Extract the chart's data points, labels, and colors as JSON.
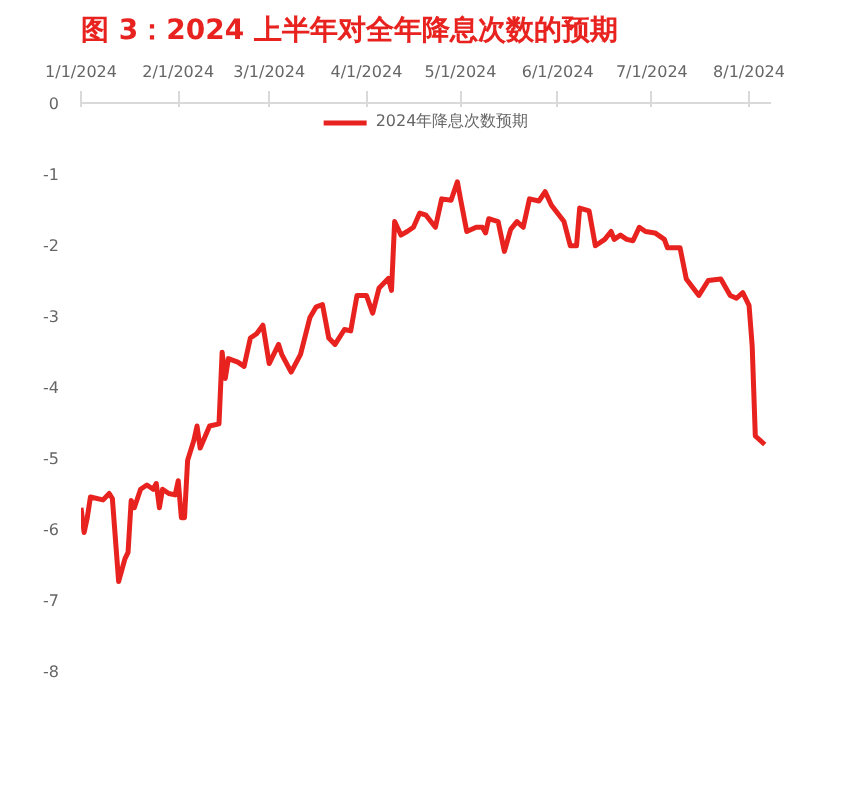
{
  "chart_data": {
    "type": "line",
    "title": "图 3：2024 上半年对全年降息次数的预期",
    "x": [
      "2024-01-01",
      "2024-01-02",
      "2024-01-03",
      "2024-01-04",
      "2024-01-08",
      "2024-01-10",
      "2024-01-11",
      "2024-01-13",
      "2024-01-15",
      "2024-01-16",
      "2024-01-17",
      "2024-01-18",
      "2024-01-20",
      "2024-01-22",
      "2024-01-24",
      "2024-01-25",
      "2024-01-26",
      "2024-01-27",
      "2024-01-29",
      "2024-01-31",
      "2024-02-01",
      "2024-02-02",
      "2024-02-03",
      "2024-02-04",
      "2024-02-06",
      "2024-02-07",
      "2024-02-08",
      "2024-02-11",
      "2024-02-14",
      "2024-02-15",
      "2024-02-16",
      "2024-02-17",
      "2024-02-20",
      "2024-02-22",
      "2024-02-24",
      "2024-02-26",
      "2024-02-28",
      "2024-03-01",
      "2024-03-04",
      "2024-03-05",
      "2024-03-08",
      "2024-03-11",
      "2024-03-14",
      "2024-03-16",
      "2024-03-18",
      "2024-03-20",
      "2024-03-22",
      "2024-03-25",
      "2024-03-27",
      "2024-03-29",
      "2024-04-01",
      "2024-04-03",
      "2024-04-05",
      "2024-04-08",
      "2024-04-09",
      "2024-04-10",
      "2024-04-12",
      "2024-04-14",
      "2024-04-16",
      "2024-04-18",
      "2024-04-20",
      "2024-04-23",
      "2024-04-25",
      "2024-04-28",
      "2024-04-30",
      "2024-05-01",
      "2024-05-03",
      "2024-05-06",
      "2024-05-08",
      "2024-05-09",
      "2024-05-10",
      "2024-05-13",
      "2024-05-15",
      "2024-05-17",
      "2024-05-19",
      "2024-05-21",
      "2024-05-23",
      "2024-05-26",
      "2024-05-28",
      "2024-05-30",
      "2024-06-03",
      "2024-06-05",
      "2024-06-07",
      "2024-06-08",
      "2024-06-11",
      "2024-06-13",
      "2024-06-16",
      "2024-06-18",
      "2024-06-19",
      "2024-06-21",
      "2024-06-23",
      "2024-06-25",
      "2024-06-27",
      "2024-06-29",
      "2024-07-02",
      "2024-07-05",
      "2024-07-06",
      "2024-07-10",
      "2024-07-12",
      "2024-07-16",
      "2024-07-19",
      "2024-07-23",
      "2024-07-26",
      "2024-07-28",
      "2024-07-30",
      "2024-08-01",
      "2024-08-02",
      "2024-08-03",
      "2024-08-06"
    ],
    "series": [
      {
        "name": "2024年降息次数预期",
        "color": "#e8231f",
        "values": [
          -5.7,
          -6.05,
          -5.84,
          -5.55,
          -5.59,
          -5.5,
          -5.57,
          -6.74,
          -6.42,
          -6.33,
          -5.6,
          -5.7,
          -5.44,
          -5.38,
          -5.44,
          -5.36,
          -5.7,
          -5.44,
          -5.5,
          -5.52,
          -5.32,
          -5.84,
          -5.84,
          -5.03,
          -4.75,
          -4.55,
          -4.86,
          -4.55,
          -4.52,
          -3.51,
          -3.88,
          -3.6,
          -3.65,
          -3.71,
          -3.31,
          -3.25,
          -3.13,
          -3.67,
          -3.4,
          -3.54,
          -3.79,
          -3.54,
          -3.02,
          -2.87,
          -2.84,
          -3.31,
          -3.4,
          -3.19,
          -3.21,
          -2.71,
          -2.71,
          -2.96,
          -2.61,
          -2.47,
          -2.64,
          -1.67,
          -1.86,
          -1.81,
          -1.75,
          -1.55,
          -1.58,
          -1.75,
          -1.35,
          -1.37,
          -1.11,
          -1.35,
          -1.81,
          -1.75,
          -1.75,
          -1.83,
          -1.63,
          -1.67,
          -2.09,
          -1.78,
          -1.67,
          -1.75,
          -1.35,
          -1.38,
          -1.25,
          -1.44,
          -1.67,
          -2.01,
          -2.01,
          -1.48,
          -1.52,
          -2.01,
          -1.92,
          -1.81,
          -1.92,
          -1.86,
          -1.92,
          -1.94,
          -1.75,
          -1.81,
          -1.83,
          -1.92,
          -2.04,
          -2.04,
          -2.48,
          -2.71,
          -2.5,
          -2.48,
          -2.71,
          -2.75,
          -2.67,
          -2.85,
          -3.42,
          -4.69,
          -4.81
        ]
      }
    ],
    "xlim": [
      "2024-01-01",
      "2024-08-08"
    ],
    "xticks": [
      {
        "value": "2024-01-01",
        "label": "1/1/2024"
      },
      {
        "value": "2024-02-01",
        "label": "2/1/2024"
      },
      {
        "value": "2024-03-01",
        "label": "3/1/2024"
      },
      {
        "value": "2024-04-01",
        "label": "4/1/2024"
      },
      {
        "value": "2024-05-01",
        "label": "5/1/2024"
      },
      {
        "value": "2024-06-01",
        "label": "6/1/2024"
      },
      {
        "value": "2024-07-01",
        "label": "7/1/2024"
      },
      {
        "value": "2024-08-01",
        "label": "8/1/2024"
      }
    ],
    "ylim": [
      -8,
      0
    ],
    "yticks": [
      0,
      -1,
      -2,
      -3,
      -4,
      -5,
      -6,
      -7,
      -8
    ],
    "grid": false,
    "legend": "top",
    "marker": "none",
    "line_style": "solid"
  }
}
